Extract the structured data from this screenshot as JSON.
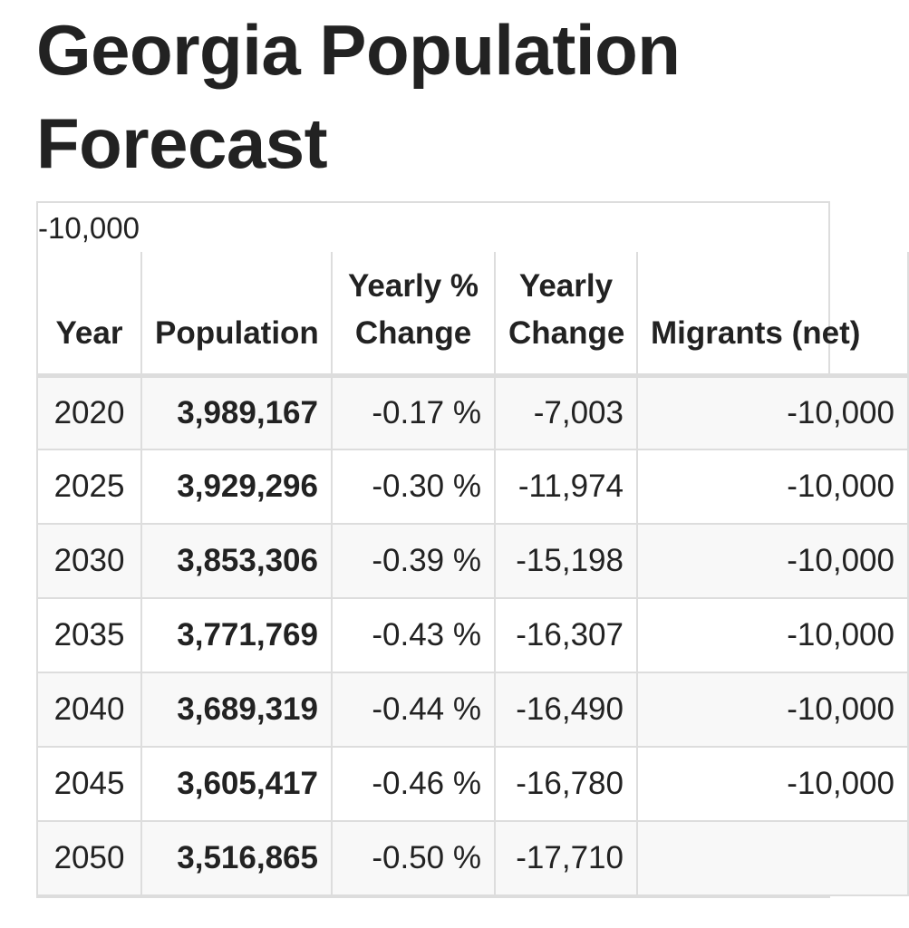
{
  "page": {
    "title": "Georgia Population Forecast"
  },
  "table": {
    "caption_value": "-10,000",
    "headers": {
      "year": "Year",
      "population": "Population",
      "yearly_pct_change": "Yearly % Change",
      "yearly_change": "Yearly Change",
      "migrants": "Migrants (net)"
    },
    "rows": [
      {
        "year": "2020",
        "population": "3,989,167",
        "pct": "-0.17 %",
        "change": "-7,003",
        "migrants": "-10,000"
      },
      {
        "year": "2025",
        "population": "3,929,296",
        "pct": "-0.30 %",
        "change": "-11,974",
        "migrants": "-10,000"
      },
      {
        "year": "2030",
        "population": "3,853,306",
        "pct": "-0.39 %",
        "change": "-15,198",
        "migrants": "-10,000"
      },
      {
        "year": "2035",
        "population": "3,771,769",
        "pct": "-0.43 %",
        "change": "-16,307",
        "migrants": "-10,000"
      },
      {
        "year": "2040",
        "population": "3,689,319",
        "pct": "-0.44 %",
        "change": "-16,490",
        "migrants": "-10,000"
      },
      {
        "year": "2045",
        "population": "3,605,417",
        "pct": "-0.46 %",
        "change": "-16,780",
        "migrants": "-10,000"
      },
      {
        "year": "2050",
        "population": "3,516,865",
        "pct": "-0.50 %",
        "change": "-17,710",
        "migrants": ""
      }
    ]
  }
}
